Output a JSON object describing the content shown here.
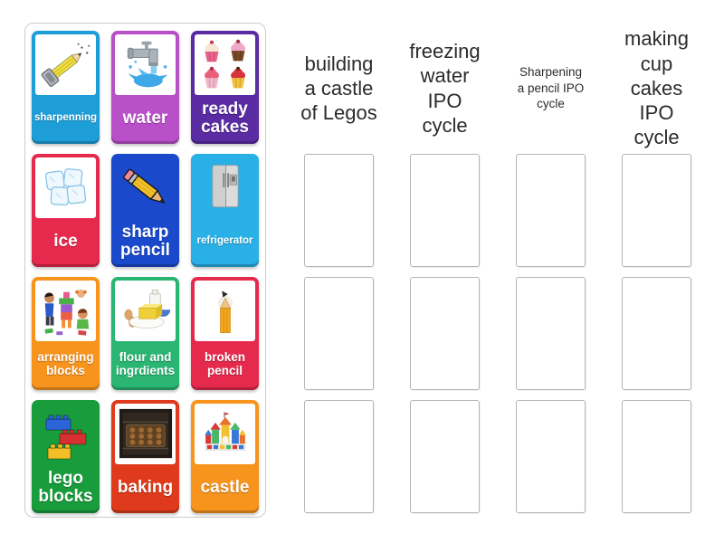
{
  "page": {
    "background_color": "#ffffff",
    "activity_type": "group-sort drag and drop"
  },
  "card_bank": {
    "border_color": "#cccccc",
    "cards": [
      {
        "label": "sharpenning",
        "color": "#1e9ed8",
        "icon": "pencil-sharpener-icon",
        "white_box": true,
        "label_size": "sm"
      },
      {
        "label": "water",
        "color": "#b94fc9",
        "icon": "faucet-water-icon",
        "white_box": true,
        "label_size": "lg"
      },
      {
        "label": "ready cakes",
        "color": "#5a2ba3",
        "icon": "cupcakes-icon",
        "white_box": true,
        "label_size": "lg"
      },
      {
        "label": "ice",
        "color": "#e62a4d",
        "icon": "ice-cubes-icon",
        "white_box": true,
        "label_size": "lg"
      },
      {
        "label": "sharp pencil",
        "color": "#1a49cc",
        "icon": "sharp-pencil-icon",
        "white_box": false,
        "label_size": "lg"
      },
      {
        "label": "refrigerator",
        "color": "#29b0e6",
        "icon": "refrigerator-icon",
        "white_box": false,
        "label_size": "sm"
      },
      {
        "label": "arranging blocks",
        "color": "#f7941e",
        "icon": "kids-arranging-blocks-icon",
        "white_box": true,
        "label_size": "md"
      },
      {
        "label": "flour and ingrdients",
        "color": "#2ab573",
        "icon": "baking-ingredients-icon",
        "white_box": true,
        "label_size": "md"
      },
      {
        "label": "broken pencil",
        "color": "#e62a4d",
        "icon": "broken-pencil-icon",
        "white_box": true,
        "label_size": "md"
      },
      {
        "label": "lego blocks",
        "color": "#189c3c",
        "icon": "lego-bricks-icon",
        "white_box": false,
        "label_size": "lg"
      },
      {
        "label": "baking",
        "color": "#de3a1b",
        "icon": "oven-cookies-icon",
        "white_box": true,
        "label_size": "lg"
      },
      {
        "label": "castle",
        "color": "#f7941e",
        "icon": "toy-castle-icon",
        "white_box": true,
        "label_size": "lg"
      }
    ]
  },
  "groups": {
    "slot_count_per_column": 3,
    "slot_border_color": "#b5b5b5",
    "columns": [
      {
        "title": "building a castle of Legos",
        "title_size": "large"
      },
      {
        "title": "freezing water IPO cycle",
        "title_size": "large"
      },
      {
        "title": "Sharpening a pencil IPO cycle",
        "title_size": "small"
      },
      {
        "title": "making cup cakes IPO cycle",
        "title_size": "large"
      }
    ]
  }
}
